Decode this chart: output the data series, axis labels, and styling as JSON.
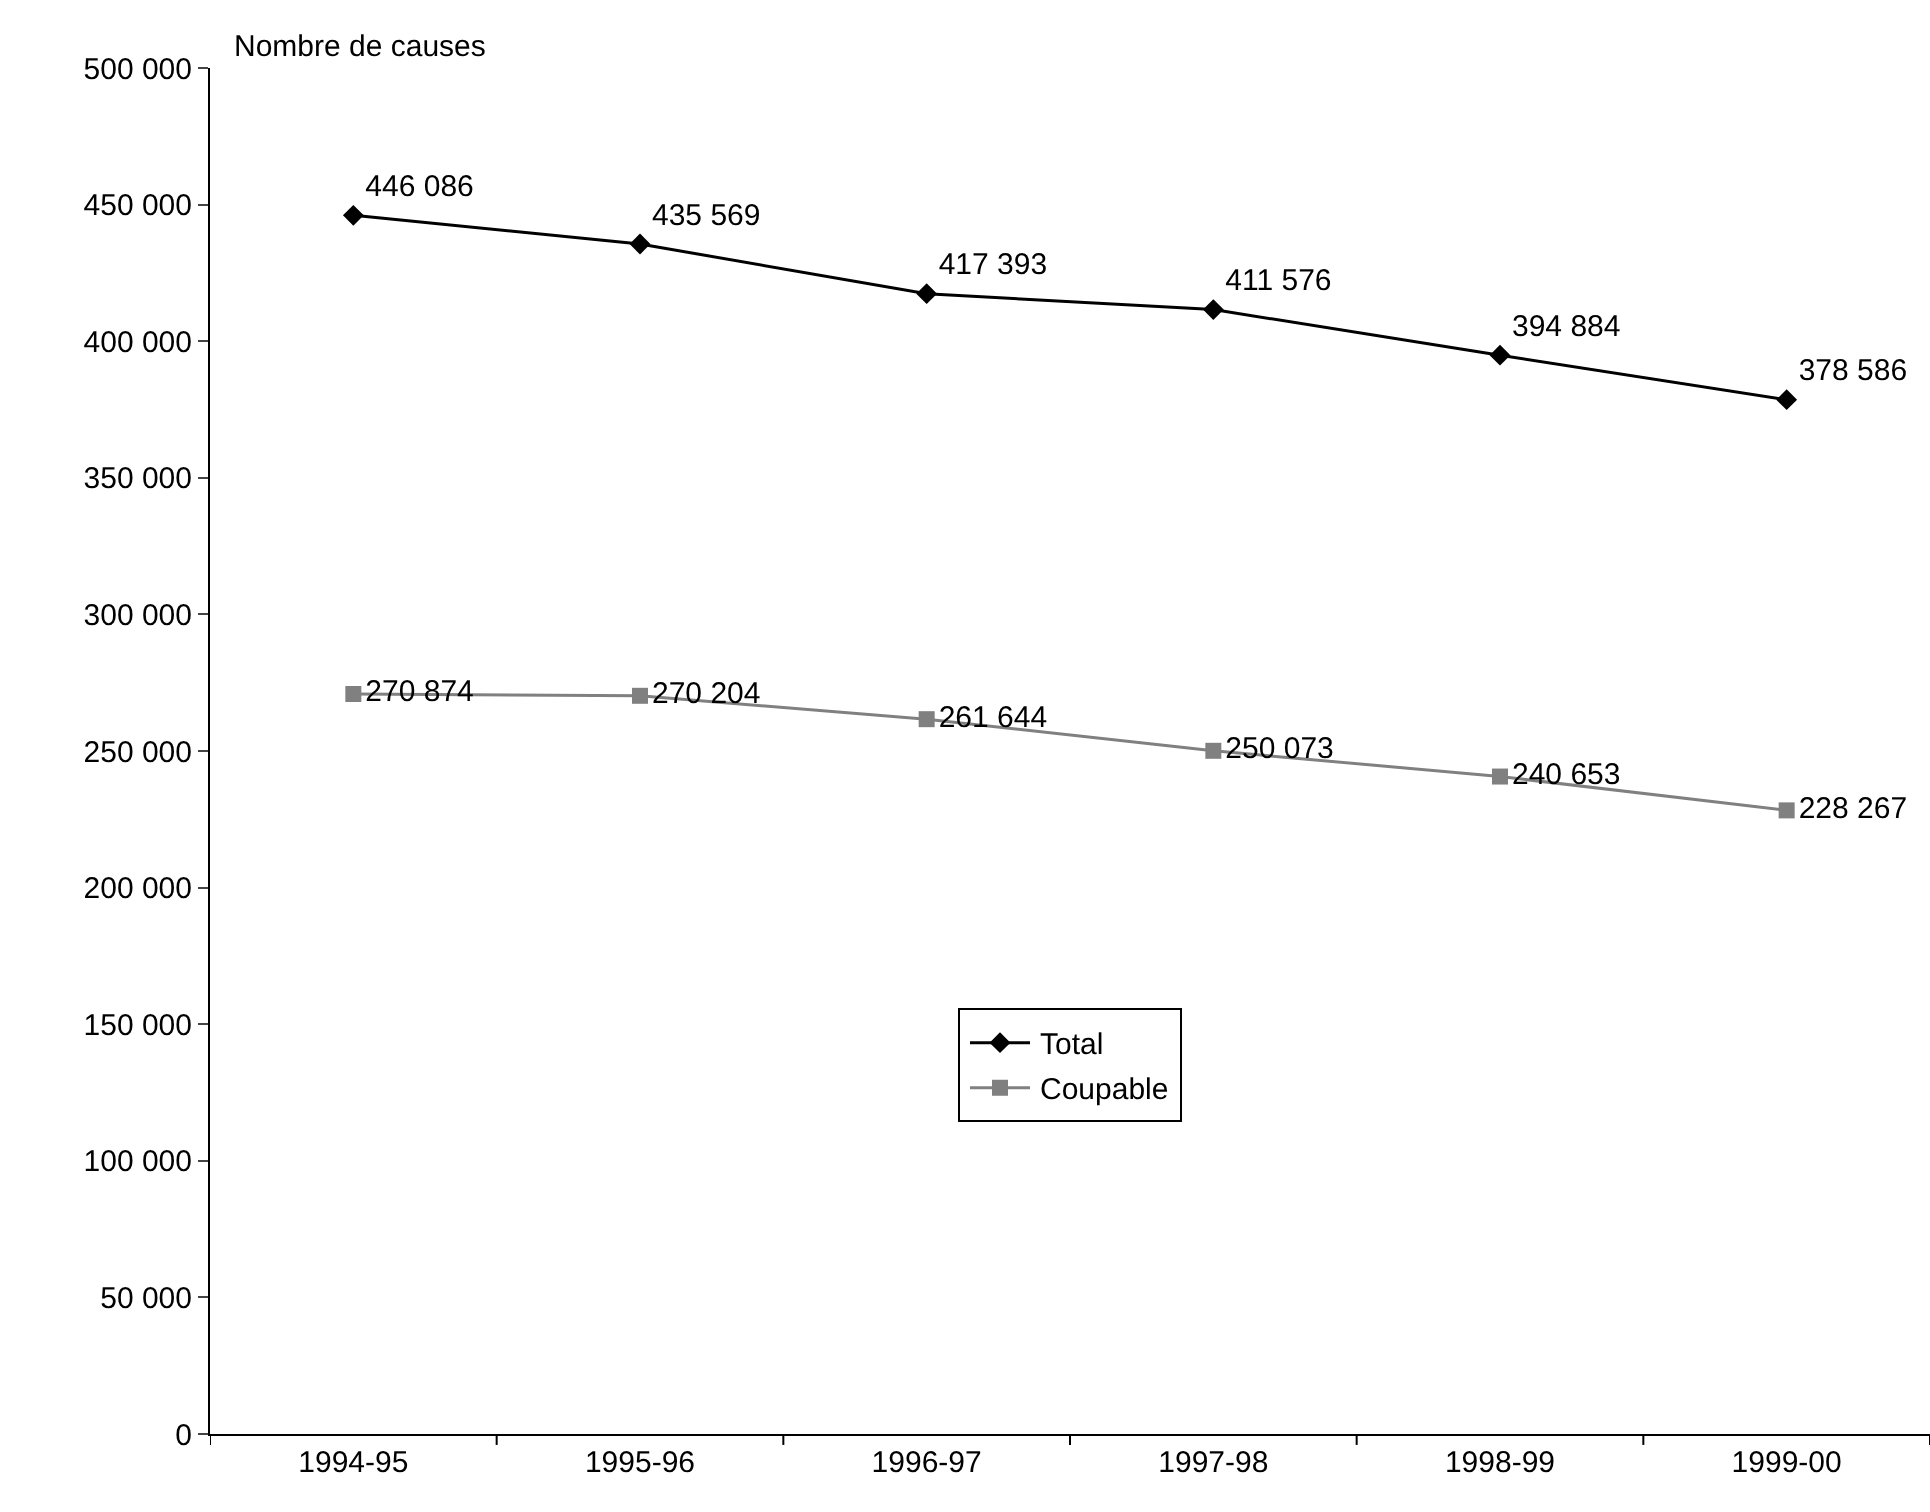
{
  "chart_data": {
    "type": "line",
    "ylabel": "Nombre de causes",
    "categories": [
      "1994-95",
      "1995-96",
      "1996-97",
      "1997-98",
      "1998-99",
      "1999-00"
    ],
    "series": [
      {
        "name": "Total",
        "color": "#000000",
        "marker": "diamond",
        "values": [
          446086,
          435569,
          417393,
          411576,
          394884,
          378586
        ],
        "value_labels": [
          "446 086",
          "435 569",
          "417 393",
          "411 576",
          "394 884",
          "378 586"
        ]
      },
      {
        "name": "Coupable",
        "color": "#808080",
        "marker": "square",
        "values": [
          270874,
          270204,
          261644,
          250073,
          240653,
          228267
        ],
        "value_labels": [
          "270 874",
          "270 204",
          "261 644",
          "250 073",
          "240 653",
          "228 267"
        ]
      }
    ],
    "ylim": [
      0,
      500000
    ],
    "yticks": [
      {
        "value": 0,
        "label": "0"
      },
      {
        "value": 50000,
        "label": "50 000"
      },
      {
        "value": 100000,
        "label": "100 000"
      },
      {
        "value": 150000,
        "label": "150 000"
      },
      {
        "value": 200000,
        "label": "200 000"
      },
      {
        "value": 250000,
        "label": "250 000"
      },
      {
        "value": 300000,
        "label": "300 000"
      },
      {
        "value": 350000,
        "label": "350 000"
      },
      {
        "value": 400000,
        "label": "400 000"
      },
      {
        "value": 450000,
        "label": "450 000"
      },
      {
        "value": 500000,
        "label": "500 000"
      }
    ],
    "grid": false,
    "legend": "center",
    "line_style": "solid"
  }
}
